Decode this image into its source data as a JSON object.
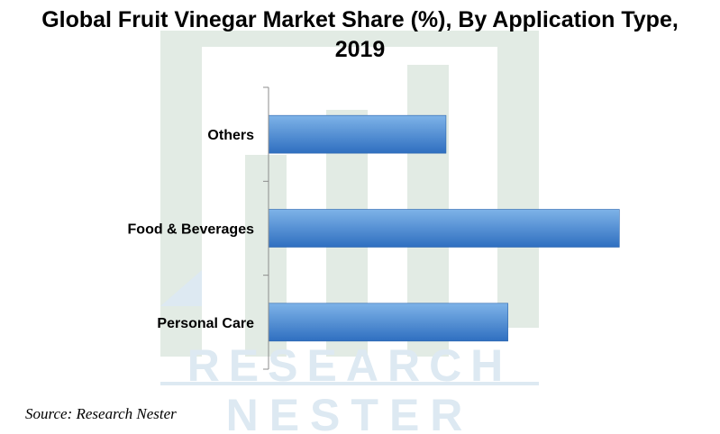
{
  "title": {
    "line1": "Global Fruit Vinegar Market Share (%), By Application Type,",
    "line2": "2019"
  },
  "source": "Source: Research Nester",
  "watermark": {
    "line1": "RESEARCH",
    "line2": "NESTER"
  },
  "colors": {
    "bar_top": "#7eb3e8",
    "bar_bottom": "#2f6fc0",
    "axis": "#8c8c8c",
    "watermark": "#dde9f2",
    "watermark_bars": "#e2ebe4"
  },
  "chart_data": {
    "type": "bar",
    "orientation": "horizontal",
    "title": "Global Fruit Vinegar Market Share (%), By Application Type, 2019",
    "categories": [
      "Others",
      "Food & Beverages",
      "Personal Care"
    ],
    "values": [
      21.5,
      42.5,
      29
    ],
    "xlim": [
      0,
      50
    ],
    "xlabel": "",
    "ylabel": "",
    "grid": false,
    "legend": "none"
  }
}
